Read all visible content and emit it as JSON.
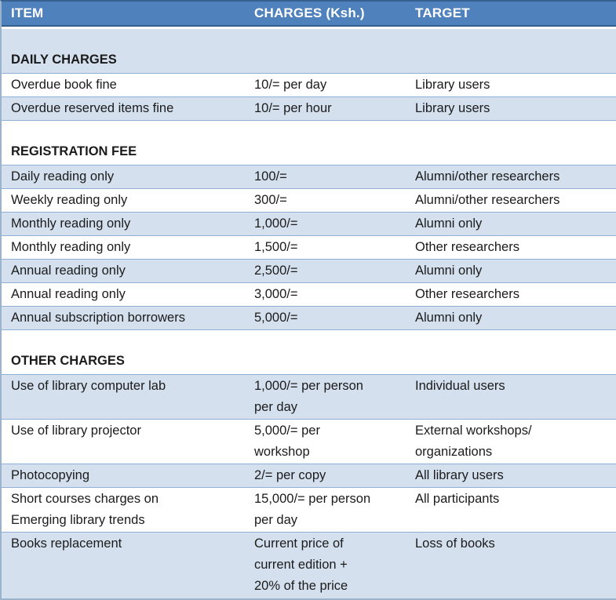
{
  "colors": {
    "header_background": "#4F81BD",
    "header_text": "#FFFFFF",
    "band_background": "#D4E0EE",
    "row_background": "#FFFFFF",
    "row_separator": "#8FAFD4",
    "outer_border": "#9BB3CB",
    "body_text": "#1B1B1B"
  },
  "table": {
    "columns": [
      "ITEM",
      "CHARGES (Ksh.)",
      "TARGET"
    ],
    "rows": [
      {
        "kind": "section",
        "label": "DAILY CHARGES"
      },
      {
        "kind": "item",
        "item": "Overdue book fine",
        "charges": "10/= per day",
        "target": "Library users"
      },
      {
        "kind": "item",
        "item": "Overdue reserved items fine",
        "charges": "10/= per hour",
        "target": "Library users"
      },
      {
        "kind": "section",
        "label": "REGISTRATION FEE"
      },
      {
        "kind": "item",
        "item": "Daily reading only",
        "charges": "100/=",
        "target": "Alumni/other researchers"
      },
      {
        "kind": "item",
        "item": "Weekly reading only",
        "charges": "300/=",
        "target": "Alumni/other researchers"
      },
      {
        "kind": "item",
        "item": "Monthly reading only",
        "charges": "1,000/=",
        "target": "Alumni only"
      },
      {
        "kind": "item",
        "item": "Monthly reading only",
        "charges": "1,500/=",
        "target": "Other researchers"
      },
      {
        "kind": "item",
        "item": "Annual reading only",
        "charges": "2,500/=",
        "target": "Alumni only"
      },
      {
        "kind": "item",
        "item": "Annual reading only",
        "charges": "3,000/=",
        "target": "Other researchers"
      },
      {
        "kind": "item",
        "item": "Annual subscription borrowers",
        "charges": "5,000/=",
        "target": "Alumni only"
      },
      {
        "kind": "section",
        "label": "OTHER CHARGES"
      },
      {
        "kind": "item",
        "item": "Use of library computer lab",
        "charges": "1,000/= per person\nper day",
        "target": "Individual users"
      },
      {
        "kind": "item",
        "item": "Use of library projector",
        "charges": "5,000/= per\nworkshop",
        "target": "External workshops/\norganizations"
      },
      {
        "kind": "item",
        "item": "Photocopying",
        "charges": "2/= per copy",
        "target": "All library users"
      },
      {
        "kind": "item",
        "item": "Short courses charges on\nEmerging library trends",
        "charges": "15,000/= per person\nper day",
        "target": "All participants"
      },
      {
        "kind": "item",
        "item": "Books replacement",
        "charges": "Current price of\ncurrent edition +\n20% of the price",
        "target": "Loss of books"
      }
    ]
  }
}
